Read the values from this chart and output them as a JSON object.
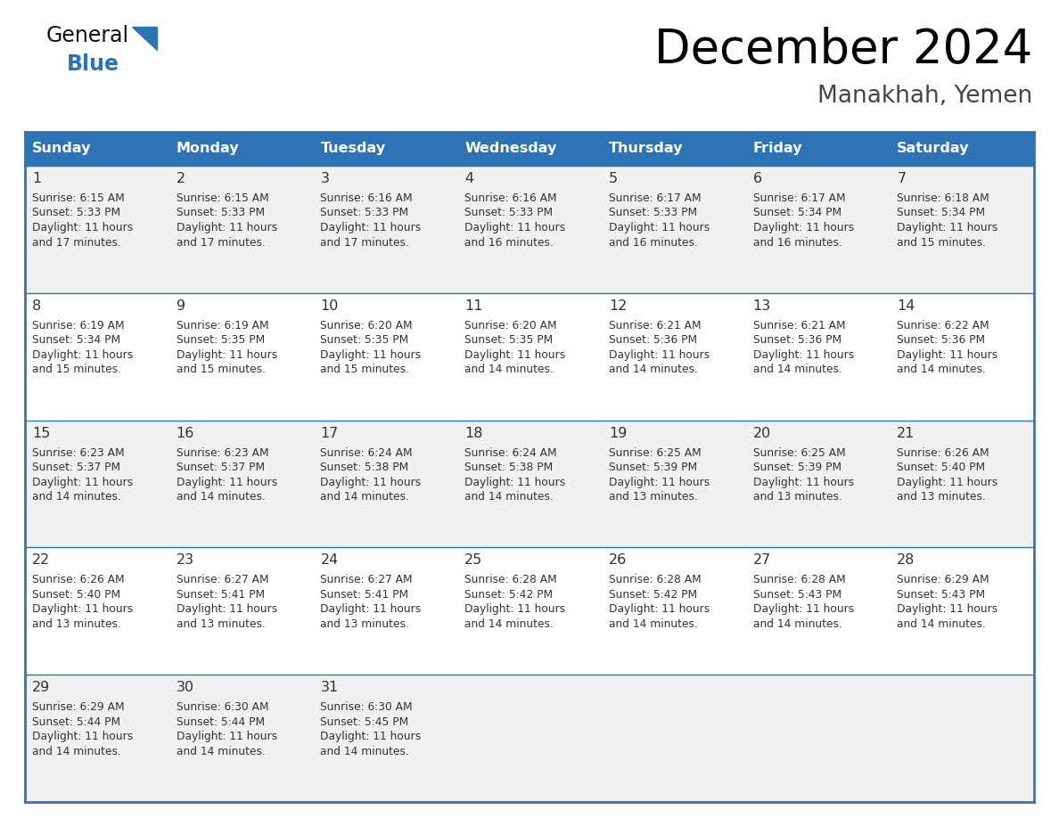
{
  "title": "December 2024",
  "subtitle": "Manakhah, Yemen",
  "header_color": "#2E74B5",
  "header_text_color": "#FFFFFF",
  "day_names": [
    "Sunday",
    "Monday",
    "Tuesday",
    "Wednesday",
    "Thursday",
    "Friday",
    "Saturday"
  ],
  "row_bg_colors": [
    "#F0F0F0",
    "#FFFFFF"
  ],
  "border_color": "#2E74B5",
  "separator_color": "#2E74B5",
  "text_color": "#333333",
  "days": [
    {
      "day": 1,
      "col": 0,
      "row": 0,
      "sunrise": "6:15 AM",
      "sunset": "5:33 PM",
      "daylight": "11 hours and 17 minutes."
    },
    {
      "day": 2,
      "col": 1,
      "row": 0,
      "sunrise": "6:15 AM",
      "sunset": "5:33 PM",
      "daylight": "11 hours and 17 minutes."
    },
    {
      "day": 3,
      "col": 2,
      "row": 0,
      "sunrise": "6:16 AM",
      "sunset": "5:33 PM",
      "daylight": "11 hours and 17 minutes."
    },
    {
      "day": 4,
      "col": 3,
      "row": 0,
      "sunrise": "6:16 AM",
      "sunset": "5:33 PM",
      "daylight": "11 hours and 16 minutes."
    },
    {
      "day": 5,
      "col": 4,
      "row": 0,
      "sunrise": "6:17 AM",
      "sunset": "5:33 PM",
      "daylight": "11 hours and 16 minutes."
    },
    {
      "day": 6,
      "col": 5,
      "row": 0,
      "sunrise": "6:17 AM",
      "sunset": "5:34 PM",
      "daylight": "11 hours and 16 minutes."
    },
    {
      "day": 7,
      "col": 6,
      "row": 0,
      "sunrise": "6:18 AM",
      "sunset": "5:34 PM",
      "daylight": "11 hours and 15 minutes."
    },
    {
      "day": 8,
      "col": 0,
      "row": 1,
      "sunrise": "6:19 AM",
      "sunset": "5:34 PM",
      "daylight": "11 hours and 15 minutes."
    },
    {
      "day": 9,
      "col": 1,
      "row": 1,
      "sunrise": "6:19 AM",
      "sunset": "5:35 PM",
      "daylight": "11 hours and 15 minutes."
    },
    {
      "day": 10,
      "col": 2,
      "row": 1,
      "sunrise": "6:20 AM",
      "sunset": "5:35 PM",
      "daylight": "11 hours and 15 minutes."
    },
    {
      "day": 11,
      "col": 3,
      "row": 1,
      "sunrise": "6:20 AM",
      "sunset": "5:35 PM",
      "daylight": "11 hours and 14 minutes."
    },
    {
      "day": 12,
      "col": 4,
      "row": 1,
      "sunrise": "6:21 AM",
      "sunset": "5:36 PM",
      "daylight": "11 hours and 14 minutes."
    },
    {
      "day": 13,
      "col": 5,
      "row": 1,
      "sunrise": "6:21 AM",
      "sunset": "5:36 PM",
      "daylight": "11 hours and 14 minutes."
    },
    {
      "day": 14,
      "col": 6,
      "row": 1,
      "sunrise": "6:22 AM",
      "sunset": "5:36 PM",
      "daylight": "11 hours and 14 minutes."
    },
    {
      "day": 15,
      "col": 0,
      "row": 2,
      "sunrise": "6:23 AM",
      "sunset": "5:37 PM",
      "daylight": "11 hours and 14 minutes."
    },
    {
      "day": 16,
      "col": 1,
      "row": 2,
      "sunrise": "6:23 AM",
      "sunset": "5:37 PM",
      "daylight": "11 hours and 14 minutes."
    },
    {
      "day": 17,
      "col": 2,
      "row": 2,
      "sunrise": "6:24 AM",
      "sunset": "5:38 PM",
      "daylight": "11 hours and 14 minutes."
    },
    {
      "day": 18,
      "col": 3,
      "row": 2,
      "sunrise": "6:24 AM",
      "sunset": "5:38 PM",
      "daylight": "11 hours and 14 minutes."
    },
    {
      "day": 19,
      "col": 4,
      "row": 2,
      "sunrise": "6:25 AM",
      "sunset": "5:39 PM",
      "daylight": "11 hours and 13 minutes."
    },
    {
      "day": 20,
      "col": 5,
      "row": 2,
      "sunrise": "6:25 AM",
      "sunset": "5:39 PM",
      "daylight": "11 hours and 13 minutes."
    },
    {
      "day": 21,
      "col": 6,
      "row": 2,
      "sunrise": "6:26 AM",
      "sunset": "5:40 PM",
      "daylight": "11 hours and 13 minutes."
    },
    {
      "day": 22,
      "col": 0,
      "row": 3,
      "sunrise": "6:26 AM",
      "sunset": "5:40 PM",
      "daylight": "11 hours and 13 minutes."
    },
    {
      "day": 23,
      "col": 1,
      "row": 3,
      "sunrise": "6:27 AM",
      "sunset": "5:41 PM",
      "daylight": "11 hours and 13 minutes."
    },
    {
      "day": 24,
      "col": 2,
      "row": 3,
      "sunrise": "6:27 AM",
      "sunset": "5:41 PM",
      "daylight": "11 hours and 13 minutes."
    },
    {
      "day": 25,
      "col": 3,
      "row": 3,
      "sunrise": "6:28 AM",
      "sunset": "5:42 PM",
      "daylight": "11 hours and 14 minutes."
    },
    {
      "day": 26,
      "col": 4,
      "row": 3,
      "sunrise": "6:28 AM",
      "sunset": "5:42 PM",
      "daylight": "11 hours and 14 minutes."
    },
    {
      "day": 27,
      "col": 5,
      "row": 3,
      "sunrise": "6:28 AM",
      "sunset": "5:43 PM",
      "daylight": "11 hours and 14 minutes."
    },
    {
      "day": 28,
      "col": 6,
      "row": 3,
      "sunrise": "6:29 AM",
      "sunset": "5:43 PM",
      "daylight": "11 hours and 14 minutes."
    },
    {
      "day": 29,
      "col": 0,
      "row": 4,
      "sunrise": "6:29 AM",
      "sunset": "5:44 PM",
      "daylight": "11 hours and 14 minutes."
    },
    {
      "day": 30,
      "col": 1,
      "row": 4,
      "sunrise": "6:30 AM",
      "sunset": "5:44 PM",
      "daylight": "11 hours and 14 minutes."
    },
    {
      "day": 31,
      "col": 2,
      "row": 4,
      "sunrise": "6:30 AM",
      "sunset": "5:45 PM",
      "daylight": "11 hours and 14 minutes."
    }
  ]
}
